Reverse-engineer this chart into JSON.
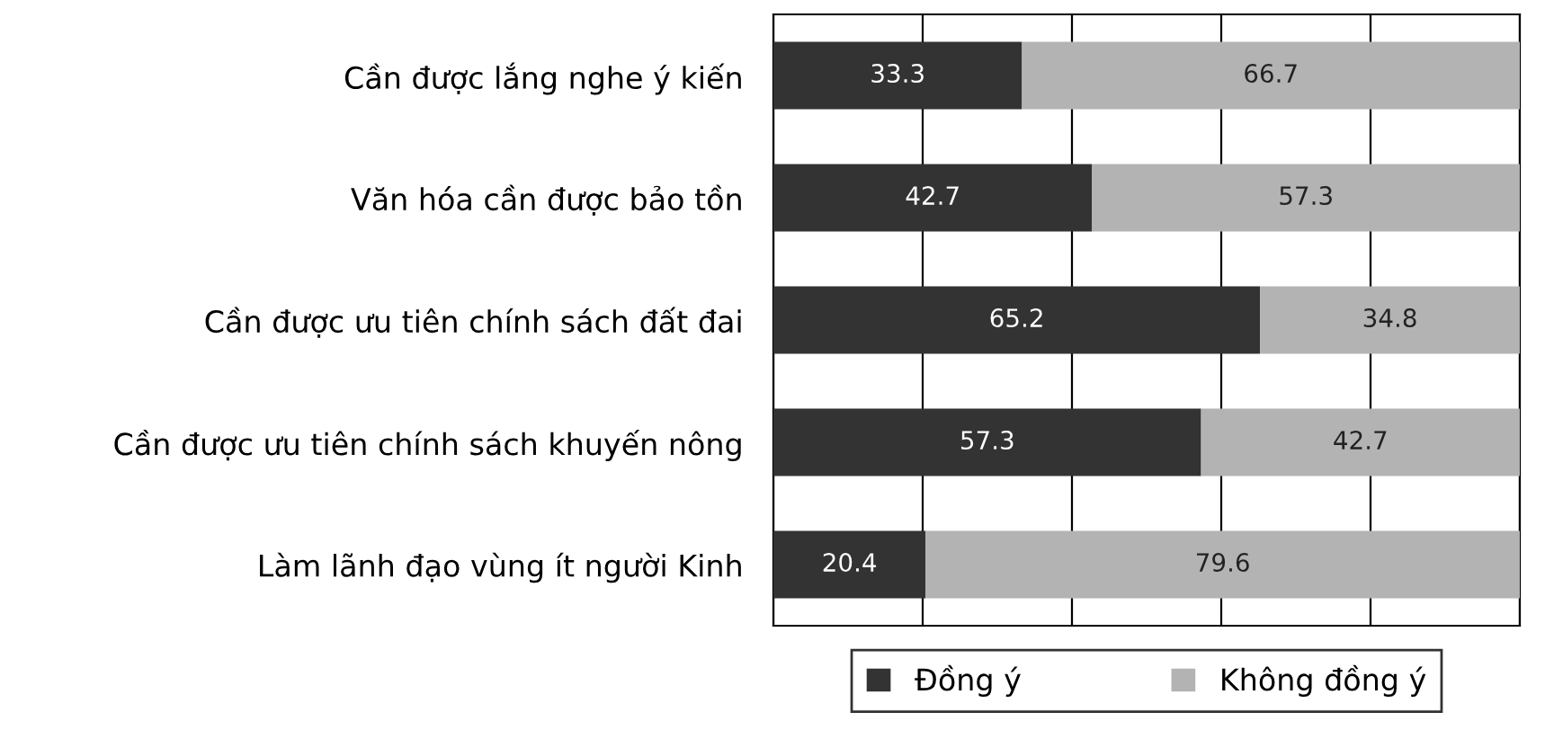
{
  "chart_data": {
    "type": "bar",
    "orientation": "horizontal",
    "stacked": true,
    "categories": [
      "Cần được lắng nghe ý kiến",
      "Văn hóa cần được bảo tồn",
      "Cần được ưu tiên chính sách đất đai",
      "Cần được ưu tiên chính sách khuyến nông",
      "Làm lãnh đạo vùng ít người Kinh"
    ],
    "series": [
      {
        "name": "Đồng ý",
        "color": "#333333",
        "values": [
          33.3,
          42.7,
          65.2,
          57.3,
          20.4
        ]
      },
      {
        "name": "Không đồng ý",
        "color": "#b3b3b3",
        "values": [
          66.7,
          57.3,
          34.8,
          42.7,
          79.6
        ]
      }
    ],
    "xlim": [
      0,
      100
    ],
    "xticks": [
      {
        "value": 0,
        "label": null
      },
      {
        "value": 20,
        "label": null
      },
      {
        "value": 40,
        "label": null
      },
      {
        "value": 60,
        "label": null
      },
      {
        "value": 80,
        "label": null
      },
      {
        "value": 100,
        "label": null
      }
    ],
    "tick_labels": "y",
    "grid": "x",
    "data_labels": true,
    "legend": "bottom"
  }
}
